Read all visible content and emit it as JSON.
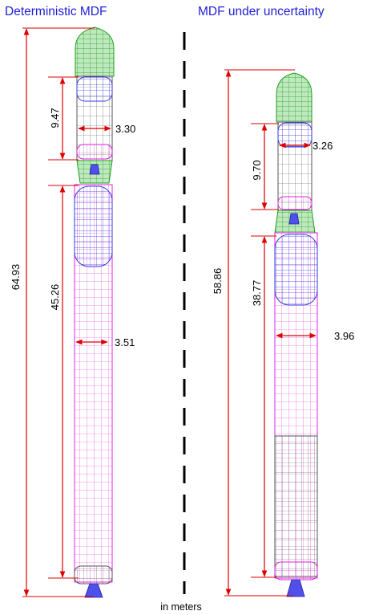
{
  "titles": {
    "left": "Deterministic MDF",
    "right": "MDF under uncertainty"
  },
  "units_label": "in meters",
  "colors": {
    "title": "#1f1fd6",
    "dimension": "#e00000",
    "fairing": "#1aa01a",
    "tank_blue": "#3a3adf",
    "tank_magenta": "#e020e0",
    "structure": "#555555"
  },
  "vehicles": [
    {
      "id": "deterministic",
      "total_length": "64.93",
      "upper_stage_length": "9.47",
      "upper_stage_diameter": "3.30",
      "lower_stage_length": "45.26",
      "lower_stage_diameter": "3.51"
    },
    {
      "id": "uncertainty",
      "total_length": "58.86",
      "upper_stage_length": "9.70",
      "upper_stage_diameter": "3.26",
      "lower_stage_length": "38.77",
      "lower_stage_diameter": "3.96"
    }
  ]
}
